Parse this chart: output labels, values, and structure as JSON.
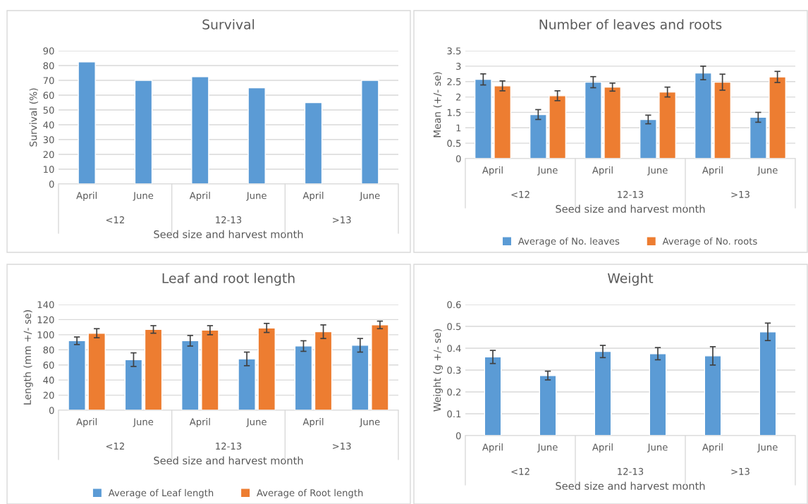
{
  "chart_data": [
    {
      "type": "bar",
      "title": "Survival",
      "xlabel": "Seed size and harvest month",
      "ylabel": "Survival (%)",
      "categories": [
        "April",
        "June",
        "April",
        "June",
        "April",
        "June"
      ],
      "series": [
        {
          "color": "#5b9bd5",
          "values": [
            82.5,
            70,
            72.5,
            65,
            55,
            70
          ]
        }
      ],
      "ylim": [
        0,
        90
      ],
      "yticks": [
        0,
        10,
        20,
        30,
        40,
        50,
        60,
        70,
        80,
        90
      ],
      "grid": "y",
      "legend": false,
      "annotations": [
        "<12",
        "12-13",
        ">13"
      ]
    },
    {
      "type": "bar",
      "title": "Number of leaves and roots",
      "xlabel": "Seed size and harvest month",
      "ylabel": "Mean (+/- se)",
      "categories": [
        "April",
        "June",
        "April",
        "June",
        "April",
        "June"
      ],
      "series": [
        {
          "name": "Average of No. leaves",
          "color": "#5b9bd5",
          "values": [
            2.57,
            1.43,
            2.48,
            1.27,
            2.78,
            1.34
          ],
          "errors": [
            0.18,
            0.16,
            0.18,
            0.14,
            0.22,
            0.16
          ]
        },
        {
          "name": "Average of No. roots",
          "color": "#ed7d31",
          "values": [
            2.36,
            2.04,
            2.32,
            2.16,
            2.48,
            2.65
          ],
          "errors": [
            0.16,
            0.16,
            0.13,
            0.16,
            0.26,
            0.18
          ]
        }
      ],
      "ylim": [
        0,
        3.5
      ],
      "yticks": [
        0,
        0.5,
        1,
        1.5,
        2,
        2.5,
        3,
        3.5
      ],
      "grid": "y",
      "legend": "bottom",
      "annotations": [
        "<12",
        "12-13",
        ">13"
      ]
    },
    {
      "type": "bar",
      "title": "Leaf and root length",
      "xlabel": "Seed size and harvest month",
      "ylabel": "Length (mm +/- se)",
      "categories": [
        "April",
        "June",
        "April",
        "June",
        "April",
        "June"
      ],
      "series": [
        {
          "name": "Average of Leaf length",
          "color": "#5b9bd5",
          "values": [
            92,
            67,
            92,
            68,
            85,
            86
          ],
          "errors": [
            5,
            9,
            7,
            9,
            7,
            9
          ]
        },
        {
          "name": "Average of Root length",
          "color": "#ed7d31",
          "values": [
            102,
            107,
            106,
            109,
            104,
            113
          ],
          "errors": [
            6,
            5,
            6,
            6,
            9,
            5
          ]
        }
      ],
      "ylim": [
        0,
        140
      ],
      "yticks": [
        0,
        20,
        40,
        60,
        80,
        100,
        120,
        140
      ],
      "grid": "y",
      "legend": "bottom",
      "annotations": [
        "<12",
        "12-13",
        ">13"
      ]
    },
    {
      "type": "bar",
      "title": "Weight",
      "xlabel": "Seed size and harvest month",
      "ylabel": "Weight (g +/- se)",
      "categories": [
        "April",
        "June",
        "April",
        "June",
        "April",
        "June"
      ],
      "series": [
        {
          "color": "#5b9bd5",
          "values": [
            0.36,
            0.275,
            0.385,
            0.375,
            0.365,
            0.475
          ],
          "errors": [
            0.03,
            0.02,
            0.028,
            0.028,
            0.042,
            0.04
          ]
        }
      ],
      "ylim": [
        0,
        0.6
      ],
      "yticks": [
        0,
        0.1,
        0.2,
        0.3,
        0.4,
        0.5,
        0.6
      ],
      "grid": "y",
      "legend": false,
      "annotations": [
        "<12",
        "12-13",
        ">13"
      ]
    }
  ]
}
